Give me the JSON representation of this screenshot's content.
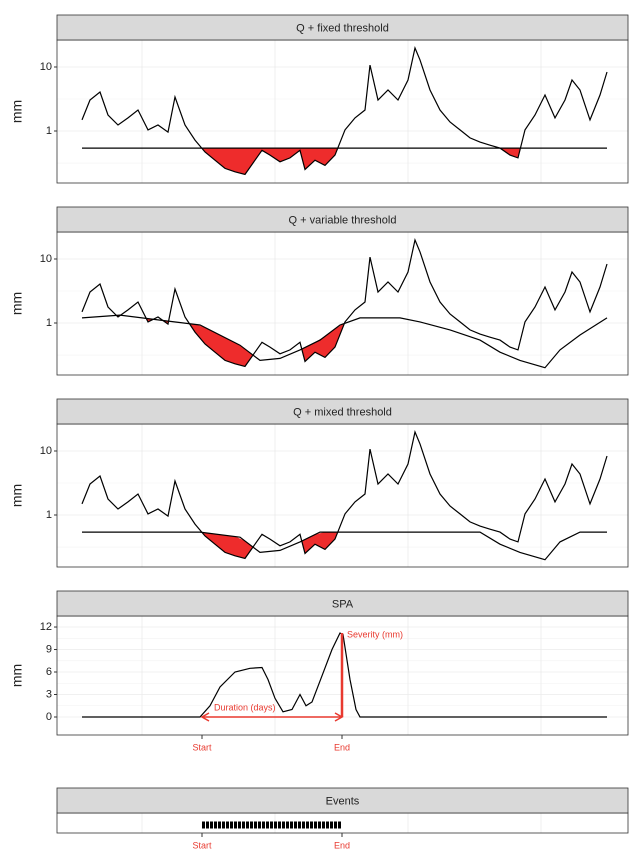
{
  "chart_data": [
    {
      "type": "line",
      "title": "Q + fixed threshold",
      "ylabel": "mm",
      "log_y": true,
      "deficit_color": "#ee2c2c",
      "xlim": [
        -25,
        546
      ],
      "ylim": [
        0.154,
        26.4
      ],
      "yticks": [
        1,
        10
      ],
      "minor_yticks": [
        0.316,
        3.16
      ],
      "xgrid": [
        60,
        193,
        326,
        459
      ],
      "grid": true,
      "series": [
        {
          "color": "#000000",
          "x": [
            0,
            8,
            18,
            26,
            36,
            46,
            56,
            66,
            76,
            86,
            93,
            103,
            113,
            123,
            133,
            143,
            153,
            163,
            173,
            180,
            188,
            198,
            208,
            218,
            223,
            233,
            243,
            253,
            263,
            273,
            283,
            288,
            296,
            306,
            316,
            326,
            333,
            338,
            348,
            358,
            368,
            378,
            388,
            398,
            408,
            418,
            428,
            436,
            443,
            453,
            463,
            473,
            483,
            490,
            498,
            508,
            518,
            525
          ],
          "values": [
            1.49,
            3.05,
            4.07,
            1.78,
            1.24,
            1.6,
            2.13,
            1.04,
            1.24,
            0.96,
            3.4,
            1.24,
            0.72,
            0.47,
            0.35,
            0.26,
            0.23,
            0.21,
            0.35,
            0.5,
            0.42,
            0.33,
            0.38,
            0.5,
            0.25,
            0.35,
            0.29,
            0.42,
            1.04,
            1.6,
            2.13,
            10.7,
            3.05,
            4.37,
            3.05,
            6.26,
            19.8,
            12.9,
            4.37,
            2.13,
            1.38,
            1.04,
            0.78,
            0.67,
            0.6,
            0.54,
            0.42,
            0.38,
            1.04,
            1.78,
            3.65,
            1.6,
            3.05,
            6.26,
            4.37,
            1.49,
            3.65,
            8.35
          ]
        },
        {
          "color": "#000000",
          "x": [
            0,
            525
          ],
          "values": [
            0.54,
            0.54
          ]
        }
      ]
    },
    {
      "type": "line",
      "title": "Q + variable threshold",
      "ylabel": "mm",
      "log_y": true,
      "deficit_color": "#ee2c2c",
      "xlim": [
        -25,
        546
      ],
      "ylim": [
        0.154,
        26.4
      ],
      "yticks": [
        1,
        10
      ],
      "minor_yticks": [
        0.316,
        3.16
      ],
      "xgrid": [
        60,
        193,
        326,
        459
      ],
      "grid": true,
      "series": [
        {
          "color": "#000000",
          "x": [
            0,
            8,
            18,
            26,
            36,
            46,
            56,
            66,
            76,
            86,
            93,
            103,
            113,
            123,
            133,
            143,
            153,
            163,
            173,
            180,
            188,
            198,
            208,
            218,
            223,
            233,
            243,
            253,
            263,
            273,
            283,
            288,
            296,
            306,
            316,
            326,
            333,
            338,
            348,
            358,
            368,
            378,
            388,
            398,
            408,
            418,
            428,
            436,
            443,
            453,
            463,
            473,
            483,
            490,
            498,
            508,
            518,
            525
          ],
          "values": [
            1.49,
            3.05,
            4.07,
            1.78,
            1.24,
            1.6,
            2.13,
            1.04,
            1.24,
            0.96,
            3.4,
            1.24,
            0.72,
            0.47,
            0.35,
            0.26,
            0.23,
            0.21,
            0.35,
            0.5,
            0.42,
            0.33,
            0.38,
            0.5,
            0.25,
            0.35,
            0.29,
            0.42,
            1.04,
            1.6,
            2.13,
            10.7,
            3.05,
            4.37,
            3.05,
            6.26,
            19.8,
            12.9,
            4.37,
            2.13,
            1.38,
            1.04,
            0.78,
            0.67,
            0.6,
            0.54,
            0.42,
            0.38,
            1.04,
            1.78,
            3.65,
            1.6,
            3.05,
            6.26,
            4.37,
            1.49,
            3.65,
            8.35
          ]
        },
        {
          "color": "#000000",
          "x": [
            0,
            38,
            78,
            118,
            158,
            178,
            198,
            218,
            238,
            258,
            278,
            318,
            338,
            368,
            398,
            418,
            438,
            463,
            478,
            498,
            525
          ],
          "values": [
            1.2,
            1.33,
            1.11,
            0.93,
            0.45,
            0.26,
            0.28,
            0.38,
            0.54,
            0.93,
            1.2,
            1.2,
            1.04,
            0.78,
            0.54,
            0.35,
            0.26,
            0.2,
            0.38,
            0.65,
            1.2
          ]
        }
      ]
    },
    {
      "type": "line",
      "title": "Q + mixed threshold",
      "ylabel": "mm",
      "log_y": true,
      "deficit_color": "#ee2c2c",
      "xlim": [
        -25,
        546
      ],
      "ylim": [
        0.154,
        26.4
      ],
      "yticks": [
        1,
        10
      ],
      "minor_yticks": [
        0.316,
        3.16
      ],
      "xgrid": [
        60,
        193,
        326,
        459
      ],
      "grid": true,
      "series": [
        {
          "color": "#000000",
          "x": [
            0,
            8,
            18,
            26,
            36,
            46,
            56,
            66,
            76,
            86,
            93,
            103,
            113,
            123,
            133,
            143,
            153,
            163,
            173,
            180,
            188,
            198,
            208,
            218,
            223,
            233,
            243,
            253,
            263,
            273,
            283,
            288,
            296,
            306,
            316,
            326,
            333,
            338,
            348,
            358,
            368,
            378,
            388,
            398,
            408,
            418,
            428,
            436,
            443,
            453,
            463,
            473,
            483,
            490,
            498,
            508,
            518,
            525
          ],
          "values": [
            1.49,
            3.05,
            4.07,
            1.78,
            1.24,
            1.6,
            2.13,
            1.04,
            1.24,
            0.96,
            3.4,
            1.24,
            0.72,
            0.47,
            0.35,
            0.26,
            0.23,
            0.21,
            0.35,
            0.5,
            0.42,
            0.33,
            0.38,
            0.5,
            0.25,
            0.35,
            0.29,
            0.42,
            1.04,
            1.6,
            2.13,
            10.7,
            3.05,
            4.37,
            3.05,
            6.26,
            19.8,
            12.9,
            4.37,
            2.13,
            1.38,
            1.04,
            0.78,
            0.67,
            0.6,
            0.54,
            0.42,
            0.38,
            1.04,
            1.78,
            3.65,
            1.6,
            3.05,
            6.26,
            4.37,
            1.49,
            3.65,
            8.35
          ]
        },
        {
          "color": "#000000",
          "x": [
            0,
            38,
            78,
            118,
            158,
            178,
            198,
            218,
            238,
            258,
            278,
            318,
            338,
            368,
            398,
            418,
            438,
            463,
            478,
            498,
            525
          ],
          "values": [
            0.54,
            0.54,
            0.54,
            0.54,
            0.45,
            0.26,
            0.28,
            0.38,
            0.54,
            0.54,
            0.54,
            0.54,
            0.54,
            0.54,
            0.54,
            0.35,
            0.26,
            0.2,
            0.38,
            0.54,
            0.54
          ]
        }
      ]
    },
    {
      "type": "line",
      "title": "SPA",
      "ylabel": "mm",
      "log_y": false,
      "xlim": [
        -25,
        546
      ],
      "ylim": [
        -2.4,
        13.47
      ],
      "yticks": [
        0,
        3,
        6,
        9,
        12
      ],
      "minor_yticks": [
        1.5,
        4.5,
        7.5,
        10.5
      ],
      "xgrid": [
        60,
        193,
        326,
        459
      ],
      "grid": true,
      "series": [
        {
          "color": "#000000",
          "x": [
            0,
            118,
            128,
            138,
            153,
            168,
            180,
            186,
            193,
            201,
            210,
            218,
            224,
            230,
            240,
            250,
            258,
            261,
            268,
            274,
            278,
            525
          ],
          "values": [
            0,
            0,
            1.5,
            4,
            6,
            6.5,
            6.6,
            5,
            2.5,
            0.7,
            1,
            3,
            1.5,
            2,
            5.5,
            9,
            11.2,
            11,
            5,
            1,
            0,
            0
          ]
        }
      ],
      "annotation_color": "#e8392f",
      "event": {
        "start": 120,
        "end": 260,
        "severity": 11.2,
        "start_label": "Start",
        "end_label": "End",
        "severity_label": "Severity (mm)",
        "duration_label": "Duration (days)"
      }
    },
    {
      "type": "events",
      "title": "Events",
      "xlim": [
        -25,
        546
      ],
      "xgrid": [
        60,
        193,
        326,
        459
      ],
      "grid": true,
      "annotation_color": "#e8392f",
      "event": {
        "start": 120,
        "end": 260,
        "start_label": "Start",
        "end_label": "End"
      }
    }
  ]
}
